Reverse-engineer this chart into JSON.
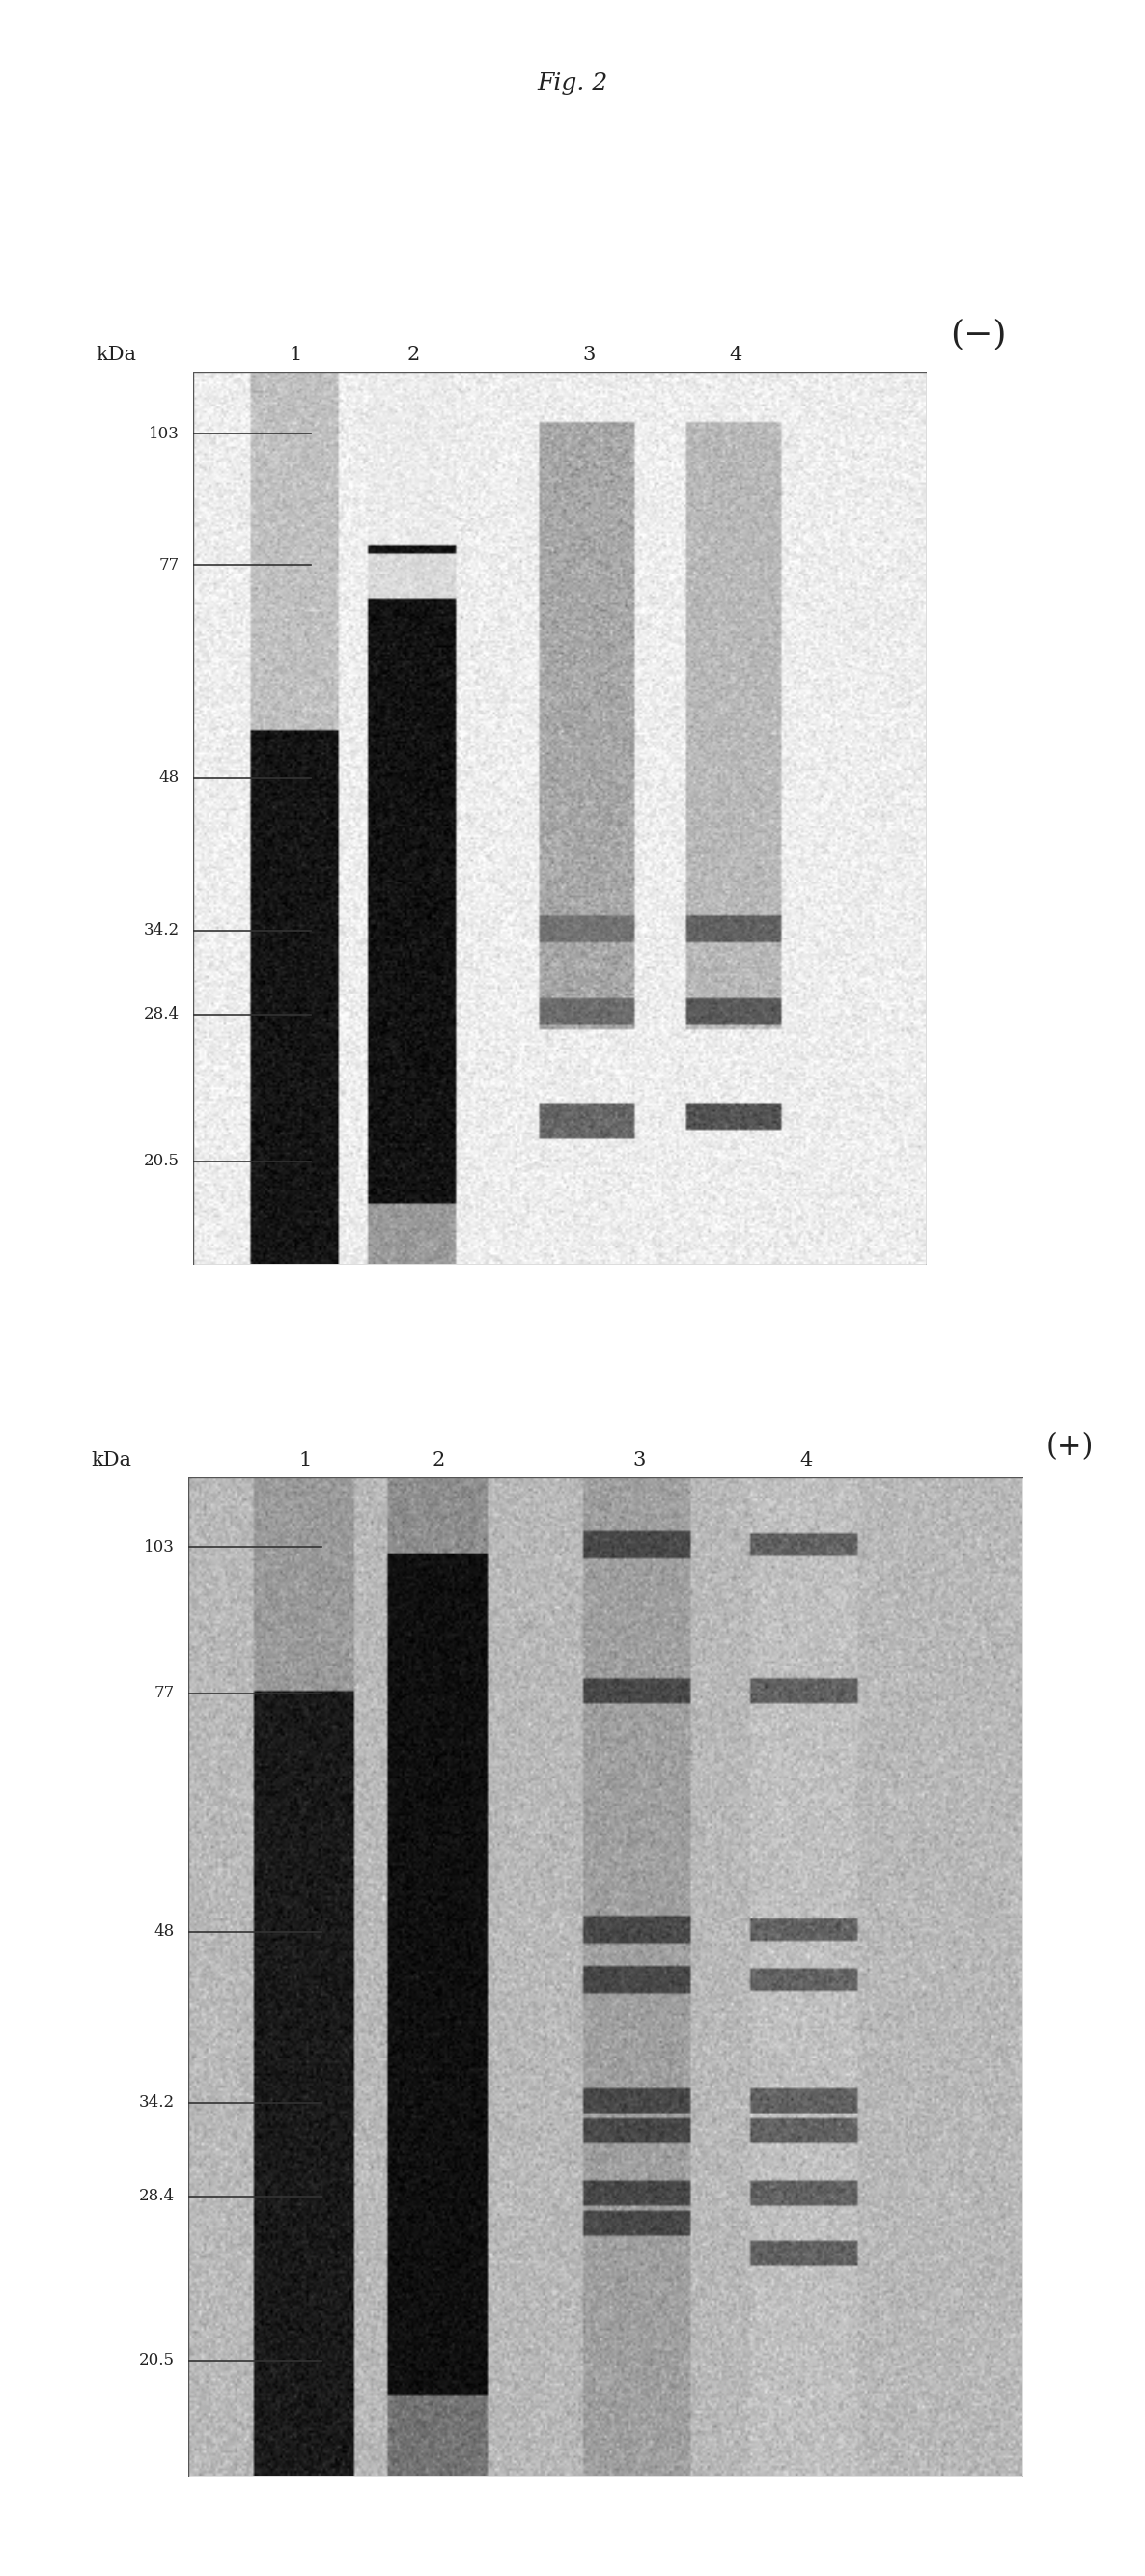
{
  "title": "Fig. 2",
  "fig_width": 11.86,
  "fig_height": 26.68,
  "bg_color": "#ffffff",
  "panel1_label": "(−)",
  "panel2_label": "(+)",
  "kda_label": "kDa",
  "kda_values": [
    103,
    77,
    48,
    34.2,
    28.4,
    20.5
  ],
  "kda_labels": [
    "103",
    "77",
    "48",
    "34.2",
    "28.4",
    "20.5"
  ],
  "lane_labels": [
    "1",
    "2",
    "3",
    "4"
  ]
}
